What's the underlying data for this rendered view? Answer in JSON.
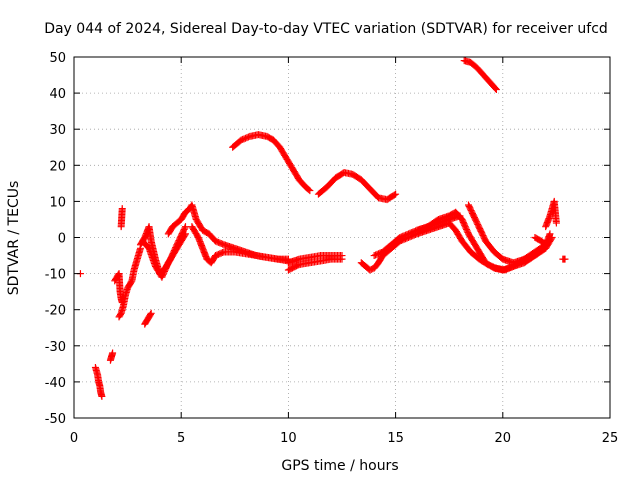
{
  "chart_data": {
    "type": "scatter",
    "title": "Day 044 of 2024, Sidereal Day-to-day VTEC variation (SDTVAR) for receiver ufcd",
    "xlabel": "GPS time / hours",
    "ylabel": "SDTVAR / TECUs",
    "xlim": [
      0,
      25
    ],
    "ylim": [
      -50,
      50
    ],
    "xticks": [
      "0",
      "5",
      "10",
      "15",
      "20",
      "25"
    ],
    "yticks": [
      "-50",
      "-40",
      "-30",
      "-20",
      "-10",
      "0",
      "10",
      "20",
      "30",
      "40",
      "50"
    ],
    "grid": true,
    "marker": "+",
    "color": "#ff0000",
    "series": [
      {
        "name": "isolated",
        "x": [
          0.3
        ],
        "y": [
          -10
        ]
      },
      {
        "name": "s1",
        "x": [
          1.0,
          1.1,
          1.15,
          1.2,
          1.25,
          1.3
        ],
        "y": [
          -36,
          -38,
          -40,
          -41,
          -43,
          -44
        ]
      },
      {
        "name": "s2",
        "x": [
          1.7,
          1.75,
          1.8
        ],
        "y": [
          -34,
          -33,
          -32
        ]
      },
      {
        "name": "s3",
        "x": [
          1.9,
          2.0,
          2.1,
          2.15,
          2.2,
          2.25
        ],
        "y": [
          -12,
          -11,
          -10,
          -15,
          -17,
          -18
        ]
      },
      {
        "name": "s4",
        "x": [
          2.2,
          2.25
        ],
        "y": [
          3,
          8
        ]
      },
      {
        "name": "s5",
        "x": [
          2.1,
          2.2,
          2.3,
          2.4,
          2.5,
          2.6,
          2.7,
          2.8,
          2.9,
          3.0,
          3.1
        ],
        "y": [
          -22,
          -21,
          -19,
          -16,
          -14,
          -13,
          -12,
          -9,
          -7,
          -5,
          -3
        ]
      },
      {
        "name": "s6",
        "x": [
          3.3,
          3.4,
          3.5,
          3.6
        ],
        "y": [
          -24,
          -23,
          -22,
          -21
        ]
      },
      {
        "name": "s7",
        "x": [
          3.1,
          3.3,
          3.5,
          3.6,
          3.8,
          4.0,
          4.2,
          4.5,
          4.8,
          5.2
        ],
        "y": [
          -2,
          0,
          3,
          -1,
          -6,
          -10,
          -9,
          -6,
          -2,
          3
        ]
      },
      {
        "name": "s8",
        "x": [
          3.2,
          3.5,
          3.8,
          4.1,
          4.4,
          4.8,
          5.2
        ],
        "y": [
          -1,
          -3,
          -8,
          -11,
          -7,
          -3,
          1
        ]
      },
      {
        "name": "s9",
        "x": [
          4.4,
          4.6,
          4.8,
          5.0,
          5.2,
          5.4,
          5.5,
          5.7,
          6.0,
          6.3,
          6.6,
          7.0,
          7.5,
          8.0,
          8.5,
          9.0,
          9.5,
          10.0
        ],
        "y": [
          1,
          3,
          4,
          5,
          7,
          8,
          9,
          5,
          2,
          1,
          -1,
          -2,
          -3,
          -4,
          -5,
          -5.5,
          -6,
          -6.5
        ]
      },
      {
        "name": "s10",
        "x": [
          5.5,
          5.8,
          6.0,
          6.2,
          6.4,
          6.6,
          7.0,
          7.5,
          8.0,
          8.5,
          9.0,
          9.5,
          10.0
        ],
        "y": [
          3,
          0,
          -3,
          -6,
          -7,
          -5,
          -4,
          -4,
          -4.5,
          -5,
          -5.5,
          -6,
          -6
        ]
      },
      {
        "name": "s11",
        "x": [
          10.0,
          10.5,
          11.0,
          11.5,
          12.0,
          12.5
        ],
        "y": [
          -7,
          -6,
          -5.5,
          -5,
          -5,
          -5
        ]
      },
      {
        "name": "s12",
        "x": [
          10.0,
          10.5,
          11.0,
          11.5,
          12.0,
          12.5
        ],
        "y": [
          -9,
          -7.5,
          -7,
          -6.5,
          -6,
          -6
        ]
      },
      {
        "name": "s13",
        "x": [
          7.4,
          7.8,
          8.2,
          8.6,
          9.0,
          9.3,
          9.6,
          9.9,
          10.2,
          10.5,
          10.8,
          11.0
        ],
        "y": [
          25,
          27,
          28,
          28.5,
          28,
          27,
          25,
          22,
          19,
          16,
          14,
          13
        ]
      },
      {
        "name": "s14",
        "x": [
          11.4,
          11.8,
          12.2,
          12.6,
          13.0,
          13.4,
          13.8,
          14.2,
          14.6,
          15.0
        ],
        "y": [
          12,
          14,
          16.5,
          18,
          17.5,
          16,
          13.5,
          11,
          10.5,
          12
        ]
      },
      {
        "name": "s15",
        "x": [
          13.4,
          13.6,
          13.8,
          14.0,
          14.2,
          14.4,
          14.8,
          15.2,
          15.6,
          16.0,
          16.5,
          17.0,
          17.5
        ],
        "y": [
          -7,
          -8,
          -9,
          -8.5,
          -7,
          -5,
          -3,
          -1,
          0,
          1,
          2,
          3,
          4
        ]
      },
      {
        "name": "s16",
        "x": [
          14.0,
          14.4,
          14.8,
          15.2,
          15.6,
          16.0,
          16.5,
          17.0,
          17.5,
          18.0
        ],
        "y": [
          -5,
          -4,
          -2,
          0,
          1,
          2,
          3,
          4,
          5,
          6
        ]
      },
      {
        "name": "s17",
        "x": [
          16.0,
          16.5,
          17.0,
          17.5,
          17.8,
          18.1,
          18.4,
          18.8,
          19.2,
          19.6,
          20.0,
          20.5,
          21.0,
          21.5,
          22.0
        ],
        "y": [
          2,
          3,
          5,
          6,
          7,
          5,
          1,
          -3,
          -7,
          -8.5,
          -9,
          -8,
          -7,
          -5,
          -2
        ]
      },
      {
        "name": "s18",
        "x": [
          17.5,
          17.8,
          18.1,
          18.5,
          18.9,
          19.3,
          19.7,
          20.1,
          20.5,
          21.0,
          21.5,
          22.0
        ],
        "y": [
          4,
          2,
          -1,
          -4,
          -6,
          -7.5,
          -8.5,
          -9,
          -8,
          -6,
          -4,
          -2
        ]
      },
      {
        "name": "s19",
        "x": [
          18.4,
          18.8,
          19.2,
          19.6,
          20.0,
          20.5,
          21.0,
          21.5,
          22.0,
          22.3
        ],
        "y": [
          9,
          4,
          -1,
          -4,
          -6,
          -7,
          -6,
          -5,
          -3,
          0
        ]
      },
      {
        "name": "s20",
        "x": [
          22.0,
          22.2,
          22.3,
          22.4,
          22.5
        ],
        "y": [
          3,
          6,
          8,
          10,
          4
        ]
      },
      {
        "name": "s21",
        "x": [
          21.5,
          21.8,
          22.0,
          22.2
        ],
        "y": [
          0,
          -1,
          -2,
          1
        ]
      },
      {
        "name": "s22",
        "x": [
          22.8,
          22.9
        ],
        "y": [
          -6,
          -6
        ]
      },
      {
        "name": "s23",
        "x": [
          18.2,
          18.5,
          18.8,
          19.1,
          19.4,
          19.7
        ],
        "y": [
          49,
          48.5,
          47,
          45,
          43,
          41
        ]
      }
    ]
  }
}
